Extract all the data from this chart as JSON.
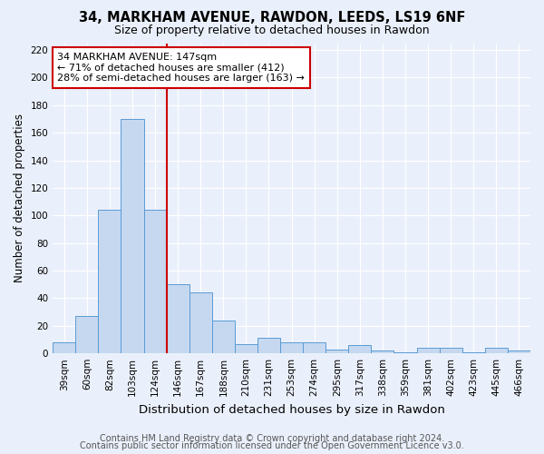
{
  "title1": "34, MARKHAM AVENUE, RAWDON, LEEDS, LS19 6NF",
  "title2": "Size of property relative to detached houses in Rawdon",
  "xlabel": "Distribution of detached houses by size in Rawdon",
  "ylabel": "Number of detached properties",
  "categories": [
    "39sqm",
    "60sqm",
    "82sqm",
    "103sqm",
    "124sqm",
    "146sqm",
    "167sqm",
    "188sqm",
    "210sqm",
    "231sqm",
    "253sqm",
    "274sqm",
    "295sqm",
    "317sqm",
    "338sqm",
    "359sqm",
    "381sqm",
    "402sqm",
    "423sqm",
    "445sqm",
    "466sqm"
  ],
  "values": [
    8,
    27,
    104,
    170,
    104,
    50,
    44,
    24,
    7,
    11,
    8,
    8,
    3,
    6,
    2,
    1,
    4,
    4,
    1,
    4,
    2
  ],
  "bar_color": "#c5d8f0",
  "bar_edge_color": "#5b9bd5",
  "vline_x_index": 5,
  "vline_color": "#cc0000",
  "annotation_line1": "34 MARKHAM AVENUE: 147sqm",
  "annotation_line2": "← 71% of detached houses are smaller (412)",
  "annotation_line3": "28% of semi-detached houses are larger (163) →",
  "annotation_box_color": "#ffffff",
  "annotation_box_edge_color": "#cc0000",
  "ylim": [
    0,
    225
  ],
  "yticks": [
    0,
    20,
    40,
    60,
    80,
    100,
    120,
    140,
    160,
    180,
    200,
    220
  ],
  "footer1": "Contains HM Land Registry data © Crown copyright and database right 2024.",
  "footer2": "Contains public sector information licensed under the Open Government Licence v3.0.",
  "bg_color": "#eaf0fb",
  "plot_bg_color": "#eaf0fb",
  "grid_color": "#ffffff",
  "title1_fontsize": 10.5,
  "title2_fontsize": 9,
  "xlabel_fontsize": 9.5,
  "ylabel_fontsize": 8.5,
  "tick_fontsize": 7.5,
  "annotation_fontsize": 8,
  "footer_fontsize": 7
}
